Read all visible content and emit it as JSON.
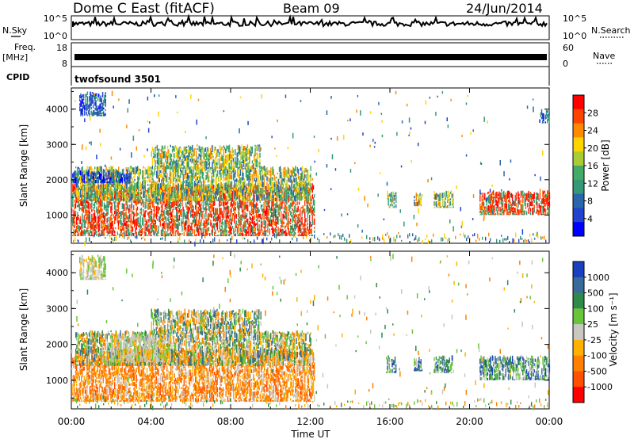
{
  "header": {
    "station": "Dome C East (fitACF)",
    "beam": "Beam 09",
    "date": "24/Jun/2014"
  },
  "panels": {
    "nsky": {
      "label": "N.Sky",
      "left_ticks": [
        "10^5",
        "10^0"
      ],
      "right_ticks": [
        "10^5",
        "10^0"
      ],
      "right_label": "N.Search"
    },
    "freq": {
      "label_top": "Freq.",
      "label_unit": "[MHz]",
      "left_ticks": [
        "18",
        "8"
      ],
      "right_ticks": [
        "60",
        "0"
      ],
      "right_label": "Nave"
    },
    "cpid": {
      "label": "CPID",
      "value": "twofsound 3501"
    }
  },
  "chart_data": [
    {
      "type": "heatmap",
      "name": "power",
      "ylabel": "Slant Range [km]",
      "yticks": [
        1000,
        2000,
        3000,
        4000
      ],
      "ylim": [
        200,
        4600
      ],
      "xlim": [
        0,
        24
      ],
      "colorbar": {
        "label": "Power [dB]",
        "ticks": [
          "28",
          "24",
          "20",
          "16",
          "12",
          "8",
          "4"
        ],
        "colors": [
          "#ff0000",
          "#ff4400",
          "#ff8a00",
          "#ffd400",
          "#aacc33",
          "#44aa66",
          "#339977",
          "#2a66aa",
          "#2244cc",
          "#0000ff"
        ]
      },
      "regions": [
        {
          "t0": 0.0,
          "t1": 12.2,
          "r0": 400,
          "r1": 1900,
          "level": "high"
        },
        {
          "t0": 0.2,
          "t1": 12.0,
          "r0": 1400,
          "r1": 2400,
          "level": "mid"
        },
        {
          "t0": 0.0,
          "t1": 3.0,
          "r0": 1900,
          "r1": 2300,
          "level": "low"
        },
        {
          "t0": 4.0,
          "t1": 9.5,
          "r0": 2300,
          "r1": 3000,
          "level": "mid"
        },
        {
          "t0": 0.4,
          "t1": 1.7,
          "r0": 3800,
          "r1": 4500,
          "level": "low"
        },
        {
          "t0": 15.8,
          "t1": 16.3,
          "r0": 1200,
          "r1": 1700,
          "level": "mid"
        },
        {
          "t0": 17.2,
          "t1": 17.6,
          "r0": 1250,
          "r1": 1650,
          "level": "mid"
        },
        {
          "t0": 18.2,
          "t1": 19.2,
          "r0": 1200,
          "r1": 1700,
          "level": "mid"
        },
        {
          "t0": 20.5,
          "t1": 24.0,
          "r0": 1000,
          "r1": 1700,
          "level": "high"
        },
        {
          "t0": 23.5,
          "t1": 24.0,
          "r0": 3600,
          "r1": 4000,
          "level": "low"
        }
      ]
    },
    {
      "type": "heatmap",
      "name": "velocity",
      "ylabel": "Slant Range [km]",
      "xlabel": "Time UT",
      "yticks": [
        1000,
        2000,
        3000,
        4000
      ],
      "ylim": [
        200,
        4600
      ],
      "xlim": [
        0,
        24
      ],
      "xticks": [
        "00:00",
        "04:00",
        "08:00",
        "12:00",
        "16:00",
        "20:00",
        "00:00"
      ],
      "colorbar": {
        "label": "Velocity [m s⁻¹]",
        "ticks": [
          "1000",
          "500",
          "100",
          "25",
          "-25",
          "-100",
          "-500",
          "-1000"
        ],
        "colors": [
          "#1a3fbf",
          "#3a6a9a",
          "#2e8a4a",
          "#6ac43a",
          "#c8c8c0",
          "#ffb000",
          "#ff8000",
          "#ff5000",
          "#ff0000"
        ]
      },
      "regions": [
        {
          "t0": 0.0,
          "t1": 12.2,
          "r0": 400,
          "r1": 1900,
          "level": "away"
        },
        {
          "t0": 0.2,
          "t1": 12.0,
          "r0": 1400,
          "r1": 2400,
          "level": "mixed"
        },
        {
          "t0": 2.0,
          "t1": 5.0,
          "r0": 1500,
          "r1": 2300,
          "level": "near-zero"
        },
        {
          "t0": 4.0,
          "t1": 9.5,
          "r0": 2300,
          "r1": 3000,
          "level": "mixed"
        },
        {
          "t0": 0.4,
          "t1": 1.7,
          "r0": 3800,
          "r1": 4500,
          "level": "near-zero"
        },
        {
          "t0": 15.8,
          "t1": 16.3,
          "r0": 1200,
          "r1": 1700,
          "level": "toward"
        },
        {
          "t0": 17.2,
          "t1": 17.6,
          "r0": 1250,
          "r1": 1650,
          "level": "toward"
        },
        {
          "t0": 18.2,
          "t1": 19.2,
          "r0": 1200,
          "r1": 1700,
          "level": "toward"
        },
        {
          "t0": 20.5,
          "t1": 24.0,
          "r0": 1000,
          "r1": 1700,
          "level": "toward"
        }
      ]
    }
  ]
}
